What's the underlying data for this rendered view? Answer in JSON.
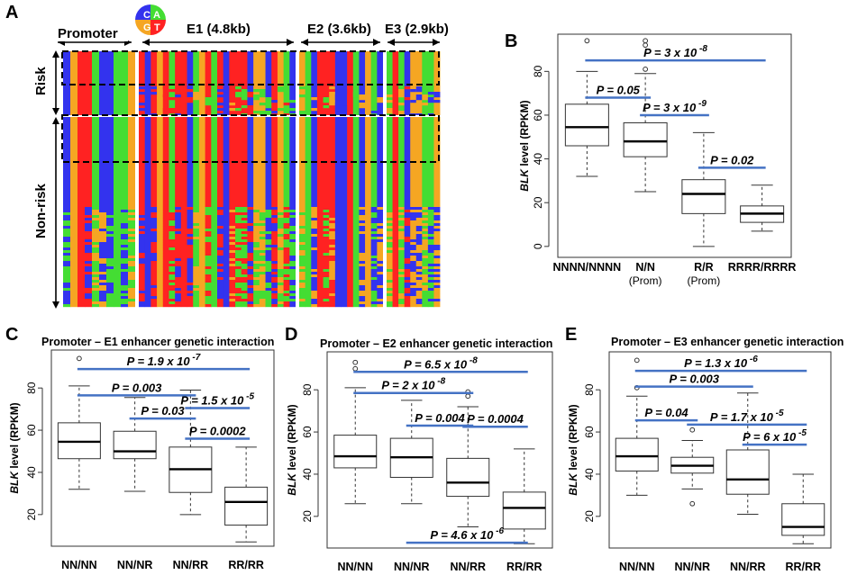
{
  "panels": {
    "A": "A",
    "B": "B",
    "C": "C",
    "D": "D",
    "E": "E"
  },
  "colors": {
    "A": "#3333ee",
    "C": "#ff2222",
    "G": "#f5a623",
    "T": "#44dd33",
    "sig_line": "#4472c4"
  },
  "heatmap": {
    "legend": {
      "c": "C",
      "a": "A",
      "g": "G",
      "t": "T"
    },
    "regions": [
      {
        "label": "Promoter"
      },
      {
        "label": "E1 (4.8kb)"
      },
      {
        "label": "E2 (3.6kb)"
      },
      {
        "label": "E3 (2.9kb)"
      }
    ],
    "groups": [
      {
        "label": "Risk"
      },
      {
        "label": "Non-risk"
      }
    ]
  },
  "chart_data": [
    {
      "panel": "B",
      "type": "box",
      "ylabel": "BLK level (RPKM)",
      "ylabel_gene": "BLK",
      "ylabel_rest": " level (RPKM)",
      "ylim": [
        -5,
        97
      ],
      "yticks": [
        0,
        20,
        40,
        60,
        80
      ],
      "categories": [
        {
          "line1": "NNNN/NNNN",
          "line2": ""
        },
        {
          "line1": "N/N",
          "line2": "(Prom)"
        },
        {
          "line1": "R/R",
          "line2": "(Prom)"
        },
        {
          "line1": "RRRR/RRRR",
          "line2": ""
        }
      ],
      "boxes": [
        {
          "min": 32,
          "q1": 46,
          "median": 54.5,
          "q3": 65,
          "max": 80,
          "outliers": [
            94
          ]
        },
        {
          "min": 25,
          "q1": 41,
          "median": 48,
          "q3": 56.5,
          "max": 79,
          "outliers": [
            81,
            92,
            94
          ]
        },
        {
          "min": 0,
          "q1": 15,
          "median": 24,
          "q3": 30.5,
          "max": 52,
          "outliers": []
        },
        {
          "min": 7,
          "q1": 11,
          "median": 15,
          "q3": 18.5,
          "max": 28,
          "outliers": []
        }
      ],
      "comparisons": [
        {
          "text": "P = 3 x 10-8",
          "a": 0,
          "b": 3,
          "y": 85
        },
        {
          "text": "P = 0.05",
          "a": 0,
          "b": 1,
          "y": 68
        },
        {
          "text": "P = 3 x 10-9",
          "a": 1,
          "b": 2,
          "y": 60
        },
        {
          "text": "P = 0.02",
          "a": 2,
          "b": 3,
          "y": 36
        }
      ]
    },
    {
      "panel": "C",
      "type": "box",
      "title": "Promoter – E1 enhancer genetic interaction",
      "ylabel": "BLK level (RPKM)",
      "ylabel_gene": "BLK",
      "ylabel_rest": " level (RPKM)",
      "ylim": [
        5,
        98
      ],
      "yticks": [
        20,
        40,
        60,
        80
      ],
      "categories": [
        {
          "line1": "NN/NN",
          "line2": ""
        },
        {
          "line1": "NN/NR",
          "line2": ""
        },
        {
          "line1": "NN/RR",
          "line2": ""
        },
        {
          "line1": "RR/RR",
          "line2": ""
        }
      ],
      "boxes": [
        {
          "min": 32,
          "q1": 46.5,
          "median": 54.5,
          "q3": 63.5,
          "max": 81,
          "outliers": [
            94
          ]
        },
        {
          "min": 31,
          "q1": 46.5,
          "median": 50,
          "q3": 59.5,
          "max": 75.5,
          "outliers": []
        },
        {
          "min": 20,
          "q1": 30.5,
          "median": 41.5,
          "q3": 52,
          "max": 79,
          "outliers": []
        },
        {
          "min": 7,
          "q1": 15,
          "median": 26,
          "q3": 33,
          "max": 52,
          "outliers": []
        }
      ],
      "comparisons": [
        {
          "text": "P = 1.9 x 10-7",
          "a": 0,
          "b": 3,
          "y": 89
        },
        {
          "text": "P = 0.003",
          "a": 0,
          "b": 2,
          "y": 76.5
        },
        {
          "text": "P = 1.5 x 10-5",
          "a": 2,
          "b": 3,
          "y": 70.5
        },
        {
          "text": "P = 0.03",
          "a": 1,
          "b": 2,
          "y": 65.5
        },
        {
          "text": "P = 0.0002",
          "a": 2,
          "b": 3,
          "y": 56
        }
      ]
    },
    {
      "panel": "D",
      "type": "box",
      "title": "Promoter – E2 enhancer genetic interaction",
      "ylabel": "BLK level (RPKM)",
      "ylabel_gene": "BLK",
      "ylabel_rest": " level (RPKM)",
      "ylim": [
        5,
        98
      ],
      "yticks": [
        20,
        40,
        60,
        80
      ],
      "categories": [
        {
          "line1": "NN/NN",
          "line2": ""
        },
        {
          "line1": "NN/NR",
          "line2": ""
        },
        {
          "line1": "NN/RR",
          "line2": ""
        },
        {
          "line1": "RR/RR",
          "line2": ""
        }
      ],
      "boxes": [
        {
          "min": 26,
          "q1": 43,
          "median": 48.5,
          "q3": 58.5,
          "max": 81,
          "outliers": [
            90,
            93
          ]
        },
        {
          "min": 26,
          "q1": 38.5,
          "median": 48,
          "q3": 57,
          "max": 75,
          "outliers": []
        },
        {
          "min": 15,
          "q1": 29.5,
          "median": 36,
          "q3": 47.5,
          "max": 72,
          "outliers": [
            77,
            79
          ]
        },
        {
          "min": 7,
          "q1": 14,
          "median": 24,
          "q3": 31.5,
          "max": 52,
          "outliers": []
        }
      ],
      "comparisons": [
        {
          "text": "P = 6.5 x 10-8",
          "a": 0,
          "b": 3,
          "y": 88.5
        },
        {
          "text": "P = 2 x 10-8",
          "a": 0,
          "b": 2,
          "y": 78.5
        },
        {
          "text": "P = 0.004",
          "a": 1,
          "b": 2,
          "y": 63
        },
        {
          "text": "P = 0.0004",
          "a": 2,
          "b": 3,
          "y": 62.5
        },
        {
          "text": "P = 4.6 x 10-6",
          "a": 1,
          "b": 3,
          "y": 7.5
        }
      ]
    },
    {
      "panel": "E",
      "type": "box",
      "title": "Promoter – E3 enhancer genetic interaction",
      "ylabel": "BLK level (RPKM)",
      "ylabel_gene": "BLK",
      "ylabel_rest": " level (RPKM)",
      "ylim": [
        5,
        98
      ],
      "yticks": [
        20,
        40,
        60,
        80
      ],
      "categories": [
        {
          "line1": "NN/NN",
          "line2": ""
        },
        {
          "line1": "NN/NR",
          "line2": ""
        },
        {
          "line1": "NN/RR",
          "line2": ""
        },
        {
          "line1": "RR/RR",
          "line2": ""
        }
      ],
      "boxes": [
        {
          "min": 30,
          "q1": 41.5,
          "median": 48.5,
          "q3": 57,
          "max": 77,
          "outliers": [
            81,
            94
          ]
        },
        {
          "min": 33,
          "q1": 40.5,
          "median": 44,
          "q3": 48,
          "max": 56,
          "outliers": [
            26,
            61
          ]
        },
        {
          "min": 21,
          "q1": 30.5,
          "median": 37.5,
          "q3": 51.5,
          "max": 78.5,
          "outliers": []
        },
        {
          "min": 7,
          "q1": 11,
          "median": 15,
          "q3": 26,
          "max": 40,
          "outliers": []
        }
      ],
      "comparisons": [
        {
          "text": "P = 1.3 x 10-6",
          "a": 0,
          "b": 3,
          "y": 89
        },
        {
          "text": "P = 0.003",
          "a": 0,
          "b": 2,
          "y": 81.5
        },
        {
          "text": "P = 0.04",
          "a": 0,
          "b": 1,
          "y": 65.5
        },
        {
          "text": "P = 1.7 x 10-5",
          "a": 1,
          "b": 3,
          "y": 63.5
        },
        {
          "text": "P = 6 x 10-5",
          "a": 2,
          "b": 3,
          "y": 54
        }
      ]
    }
  ]
}
